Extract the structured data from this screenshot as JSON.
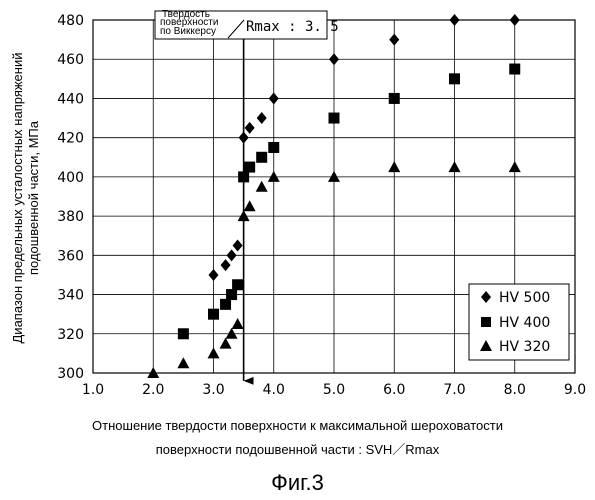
{
  "chart_data": {
    "type": "scatter",
    "ylabel_line1": "Диапазон предельных усталостных напряжений",
    "ylabel_line2": "подошвенной части, МПа",
    "xlabel_line1": "Отношение твердости поверхности к максимальной шероховатости",
    "xlabel_line2": "поверхности подошвенной части : SVH／Rmax",
    "figure_caption": "Фиг.3",
    "xlim": [
      1.0,
      9.0
    ],
    "ylim": [
      300,
      480
    ],
    "x_ticks": [
      "1.0",
      "2.0",
      "3.0",
      "4.0",
      "5.0",
      "6.0",
      "7.0",
      "8.0",
      "9.0"
    ],
    "y_ticks": [
      "300",
      "320",
      "340",
      "360",
      "380",
      "400",
      "420",
      "440",
      "460",
      "480"
    ],
    "grid": true,
    "legend_position": "bottom-right",
    "annotation": {
      "line1": "Твердость",
      "line2": "поверхности",
      "line3": "по Виккерсу",
      "ratio": "Rmax : 3. 5",
      "x": 3.5
    },
    "series": [
      {
        "name": "HV 500",
        "marker": "diamond",
        "points": [
          [
            3.0,
            350
          ],
          [
            3.2,
            355
          ],
          [
            3.3,
            360
          ],
          [
            3.4,
            365
          ],
          [
            3.5,
            420
          ],
          [
            3.6,
            425
          ],
          [
            3.8,
            430
          ],
          [
            4.0,
            440
          ],
          [
            5.0,
            460
          ],
          [
            6.0,
            470
          ],
          [
            7.0,
            480
          ],
          [
            8.0,
            480
          ]
        ]
      },
      {
        "name": "HV 400",
        "marker": "square",
        "points": [
          [
            2.5,
            320
          ],
          [
            3.0,
            330
          ],
          [
            3.2,
            335
          ],
          [
            3.3,
            340
          ],
          [
            3.4,
            345
          ],
          [
            3.5,
            400
          ],
          [
            3.6,
            405
          ],
          [
            3.8,
            410
          ],
          [
            4.0,
            415
          ],
          [
            5.0,
            430
          ],
          [
            6.0,
            440
          ],
          [
            7.0,
            450
          ],
          [
            8.0,
            455
          ]
        ]
      },
      {
        "name": "HV 320",
        "marker": "triangle",
        "points": [
          [
            2.0,
            300
          ],
          [
            2.5,
            305
          ],
          [
            3.0,
            310
          ],
          [
            3.2,
            315
          ],
          [
            3.3,
            320
          ],
          [
            3.4,
            325
          ],
          [
            3.5,
            380
          ],
          [
            3.6,
            385
          ],
          [
            3.8,
            395
          ],
          [
            4.0,
            400
          ],
          [
            5.0,
            400
          ],
          [
            6.0,
            405
          ],
          [
            7.0,
            405
          ],
          [
            8.0,
            405
          ]
        ]
      }
    ]
  }
}
